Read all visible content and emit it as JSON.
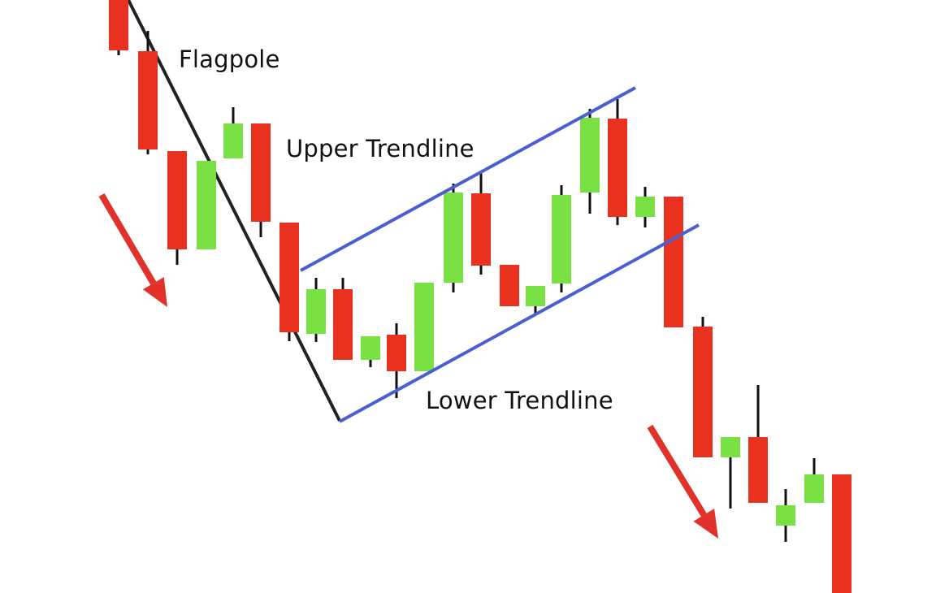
{
  "labels": {
    "flagpole": "Flagpole",
    "upper_trendline": "Upper Trendline",
    "lower_trendline": "Lower Trendline"
  },
  "colors": {
    "bearish_candle": "#e8321f",
    "bullish_candle": "#79e043",
    "wick": "#111111",
    "flagpole_line": "#222222",
    "trendline": "#4a5fd0",
    "arrow": "#e0322a"
  },
  "candle_sequence": [
    "bearish",
    "bearish",
    "bearish",
    "bullish",
    "bullish",
    "bearish",
    "bearish",
    "bullish",
    "bearish",
    "bullish",
    "bearish",
    "bullish",
    "bullish",
    "bearish",
    "bearish",
    "bullish",
    "bullish",
    "bullish",
    "bearish",
    "bullish",
    "bearish",
    "bearish",
    "bullish",
    "bearish",
    "bullish",
    "bullish",
    "bearish"
  ]
}
